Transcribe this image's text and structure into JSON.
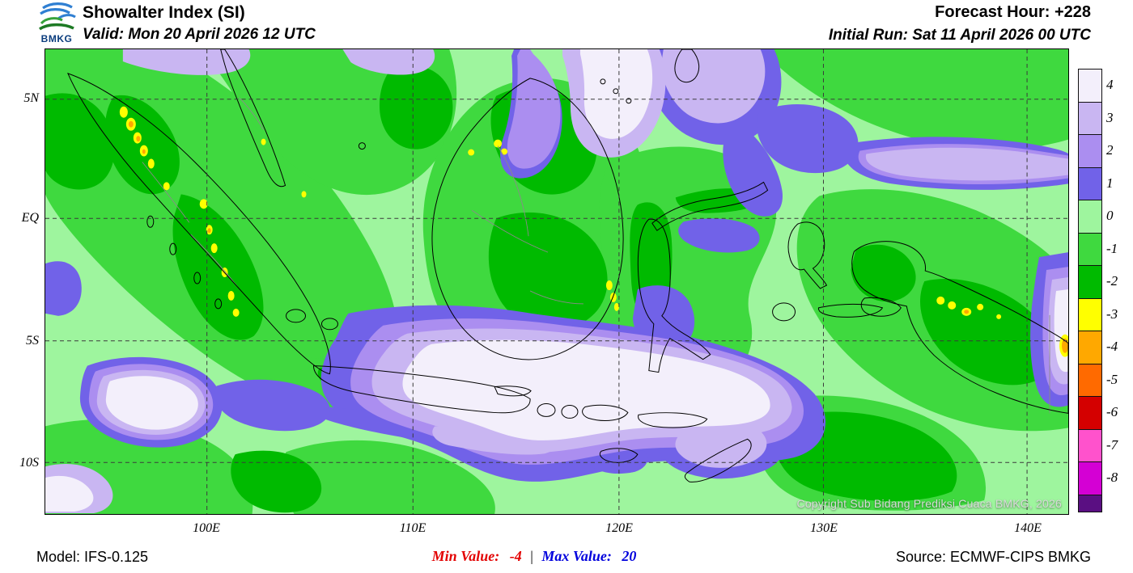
{
  "header": {
    "logo_text": "BMKG",
    "title": "Showalter Index (SI)",
    "valid_line": "Valid: Mon 20 April 2026 12 UTC",
    "forecast_hour": "Forecast Hour: +228",
    "initial_run": "Initial Run: Sat 11 April 2026 00 UTC"
  },
  "map": {
    "lat_labels": [
      "5N",
      "EQ",
      "5S",
      "10S"
    ],
    "lon_labels": [
      "100E",
      "110E",
      "120E",
      "130E",
      "140E"
    ],
    "copyright": "Copyright Sub Bidang Prediksi Cuaca BMKG, 2026"
  },
  "colorbar": {
    "entries": [
      {
        "label": "4",
        "color": "#f3effb"
      },
      {
        "label": "3",
        "color": "#c9b6f2"
      },
      {
        "label": "2",
        "color": "#ab8ef0"
      },
      {
        "label": "1",
        "color": "#7162e8"
      },
      {
        "label": "0",
        "color": "#9ef59e"
      },
      {
        "label": "-1",
        "color": "#3fd93f"
      },
      {
        "label": "-2",
        "color": "#00ba00"
      },
      {
        "label": "-3",
        "color": "#ffff00"
      },
      {
        "label": "-4",
        "color": "#ffa800"
      },
      {
        "label": "-5",
        "color": "#ff6a00"
      },
      {
        "label": "-6",
        "color": "#d40000"
      },
      {
        "label": "-7",
        "color": "#ff52cc"
      },
      {
        "label": "-8",
        "color": "#d400d4"
      }
    ],
    "bottom_color": "#5a0f82"
  },
  "footer": {
    "model": "Model: IFS-0.125",
    "min_label": "Min Value:",
    "min_value": "-4",
    "separator": "|",
    "max_label": "Max Value:",
    "max_value": "20",
    "source": "Source: ECMWF-CIPS BMKG"
  }
}
